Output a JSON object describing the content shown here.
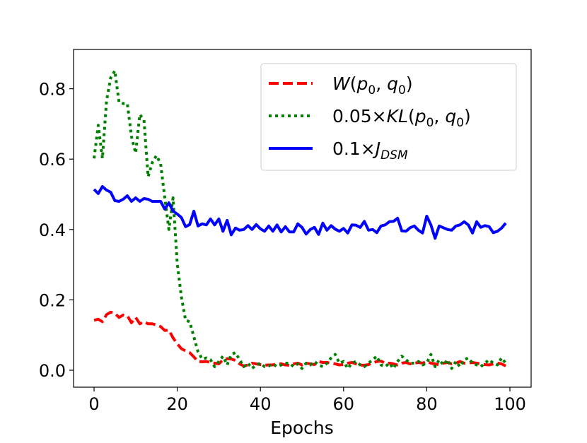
{
  "chart_data": {
    "type": "line",
    "title": "",
    "xlabel": "Epochs",
    "ylabel": "",
    "xlim": [
      -5,
      104
    ],
    "ylim": [
      -0.04,
      0.92
    ],
    "xticks": [
      0,
      20,
      40,
      60,
      80,
      100
    ],
    "xtick_labels": [
      "0",
      "20",
      "40",
      "60",
      "80",
      "100"
    ],
    "yticks": [
      0.0,
      0.2,
      0.4,
      0.6,
      0.8
    ],
    "ytick_labels": [
      "0.0",
      "0.2",
      "0.4",
      "0.6",
      "0.8"
    ],
    "grid": false,
    "legend_position": "top-right",
    "series": [
      {
        "name": "W(p0, q0)",
        "legend_parts": [
          {
            "t": "W",
            "i": true
          },
          {
            "t": "(",
            "i": false
          },
          {
            "t": "p",
            "i": true
          },
          {
            "t": "0",
            "sub": true
          },
          {
            "t": ", ",
            "i": false
          },
          {
            "t": "q",
            "i": true
          },
          {
            "t": "0",
            "sub": true
          },
          {
            "t": ")",
            "i": false
          }
        ],
        "color": "#ff0000",
        "style": "dashed",
        "values": [
          0.142,
          0.145,
          0.138,
          0.158,
          0.165,
          0.162,
          0.15,
          0.157,
          0.155,
          0.135,
          0.15,
          0.132,
          0.138,
          0.132,
          0.132,
          0.129,
          0.124,
          0.113,
          0.114,
          0.092,
          0.075,
          0.061,
          0.055,
          0.05,
          0.038,
          0.025,
          0.024,
          0.025,
          0.022,
          0.02,
          0.018,
          0.03,
          0.033,
          0.032,
          0.028,
          0.018,
          0.012,
          0.015,
          0.02,
          0.018,
          0.016,
          0.014,
          0.015,
          0.015,
          0.018,
          0.018,
          0.015,
          0.014,
          0.018,
          0.02,
          0.015,
          0.02,
          0.018,
          0.016,
          0.025,
          0.022,
          0.022,
          0.02,
          0.018,
          0.015,
          0.016,
          0.02,
          0.022,
          0.018,
          0.015,
          0.014,
          0.016,
          0.02,
          0.025,
          0.026,
          0.02,
          0.02,
          0.018,
          0.015,
          0.02,
          0.022,
          0.018,
          0.02,
          0.022,
          0.02,
          0.025,
          0.02,
          0.018,
          0.015,
          0.02,
          0.022,
          0.018,
          0.02,
          0.025,
          0.02,
          0.02,
          0.022,
          0.02,
          0.018,
          0.016,
          0.015,
          0.018,
          0.02,
          0.018,
          0.012
        ]
      },
      {
        "name": "0.05×KL(p0, q0)",
        "legend_parts": [
          {
            "t": "0.05×",
            "i": false
          },
          {
            "t": "KL",
            "i": true
          },
          {
            "t": "(",
            "i": false
          },
          {
            "t": "p",
            "i": true
          },
          {
            "t": "0",
            "sub": true
          },
          {
            "t": ", ",
            "i": false
          },
          {
            "t": "q",
            "i": true
          },
          {
            "t": "0",
            "sub": true
          },
          {
            "t": ")",
            "i": false
          }
        ],
        "color": "#008000",
        "style": "dotted",
        "values": [
          0.602,
          0.696,
          0.602,
          0.765,
          0.831,
          0.851,
          0.761,
          0.758,
          0.758,
          0.664,
          0.617,
          0.727,
          0.711,
          0.55,
          0.59,
          0.61,
          0.587,
          0.49,
          0.4,
          0.49,
          0.303,
          0.208,
          0.142,
          0.138,
          0.095,
          0.052,
          0.032,
          0.035,
          0.03,
          0.01,
          0.025,
          0.04,
          0.015,
          0.045,
          0.05,
          0.03,
          0.01,
          0.02,
          0.005,
          0.015,
          0.02,
          0.01,
          0.012,
          0.018,
          0.01,
          0.015,
          0.02,
          0.02,
          0.01,
          0.018,
          0.005,
          0.02,
          0.015,
          0.025,
          0.015,
          0.01,
          0.02,
          0.035,
          0.045,
          0.02,
          0.025,
          0.005,
          0.02,
          0.025,
          0.015,
          0.01,
          0.02,
          0.03,
          0.04,
          0.015,
          0.01,
          0.02,
          0.005,
          0.025,
          0.04,
          0.03,
          0.02,
          0.02,
          0.025,
          0.015,
          0.02,
          0.045,
          0.01,
          0.03,
          0.015,
          0.03,
          0.005,
          0.025,
          0.01,
          0.03,
          0.035,
          0.02,
          0.015,
          0.01,
          0.02,
          0.03,
          0.02,
          0.015,
          0.035,
          0.02
        ]
      },
      {
        "name": "0.1×J_DSM",
        "legend_parts": [
          {
            "t": "0.1×",
            "i": false
          },
          {
            "t": "J",
            "i": true
          },
          {
            "t": "DSM",
            "sub": true,
            "i": true
          }
        ],
        "color": "#0000ff",
        "style": "solid",
        "values": [
          0.514,
          0.502,
          0.522,
          0.512,
          0.506,
          0.482,
          0.48,
          0.486,
          0.496,
          0.48,
          0.49,
          0.48,
          0.488,
          0.486,
          0.48,
          0.48,
          0.48,
          0.458,
          0.476,
          0.452,
          0.444,
          0.434,
          0.408,
          0.414,
          0.452,
          0.41,
          0.416,
          0.413,
          0.43,
          0.413,
          0.43,
          0.395,
          0.426,
          0.385,
          0.404,
          0.398,
          0.4,
          0.411,
          0.4,
          0.414,
          0.402,
          0.395,
          0.41,
          0.395,
          0.413,
          0.393,
          0.408,
          0.393,
          0.393,
          0.416,
          0.406,
          0.387,
          0.4,
          0.406,
          0.386,
          0.418,
          0.398,
          0.411,
          0.401,
          0.395,
          0.403,
          0.39,
          0.413,
          0.412,
          0.406,
          0.423,
          0.398,
          0.4,
          0.391,
          0.41,
          0.413,
          0.422,
          0.423,
          0.432,
          0.396,
          0.395,
          0.405,
          0.41,
          0.398,
          0.39,
          0.438,
          0.413,
          0.375,
          0.41,
          0.405,
          0.4,
          0.398,
          0.41,
          0.413,
          0.422,
          0.413,
          0.39,
          0.422,
          0.406,
          0.411,
          0.408,
          0.391,
          0.395,
          0.404,
          0.418
        ]
      }
    ]
  }
}
